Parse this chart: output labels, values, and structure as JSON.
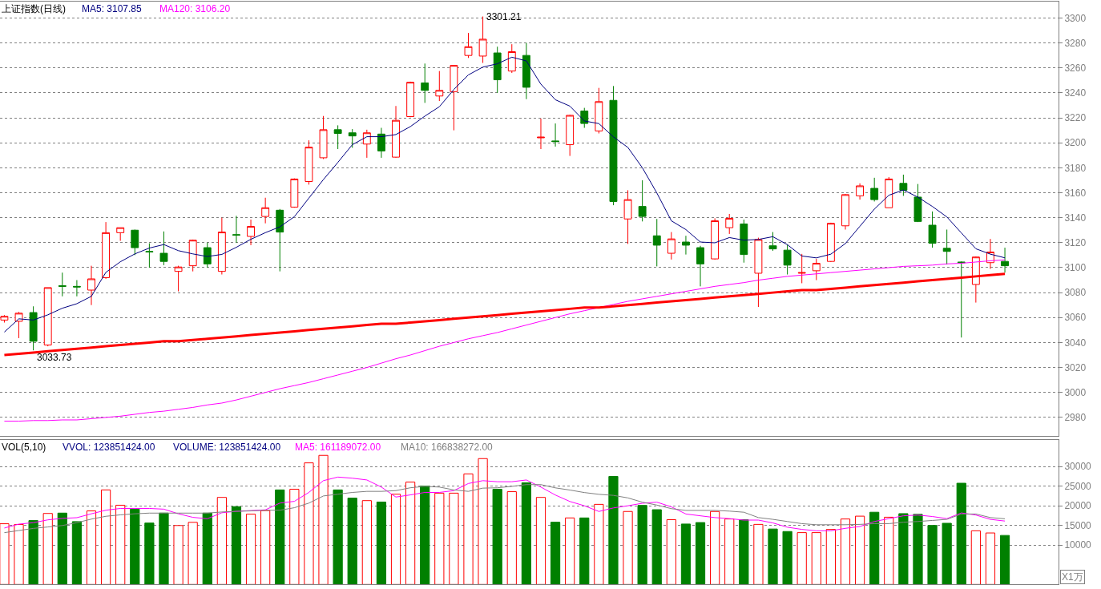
{
  "chart_data": [
    {
      "type": "candlestick",
      "title": "上证指数(日线)",
      "tick_labels": "y",
      "grid": "y",
      "categories": [
        null,
        null,
        null,
        null,
        null,
        null,
        null,
        null,
        null,
        null,
        null,
        null,
        null,
        null,
        null,
        null,
        null,
        null,
        null,
        null,
        null,
        null,
        null,
        null,
        null,
        null,
        null,
        null,
        null,
        null,
        null,
        null,
        null,
        null,
        null,
        null,
        null,
        null,
        null,
        null,
        null,
        null,
        null,
        null,
        null,
        null,
        null,
        null,
        null,
        null,
        null,
        null,
        null,
        null,
        null,
        null,
        null,
        null,
        null,
        null,
        null,
        null,
        null,
        null,
        null,
        null,
        null,
        null,
        null,
        null
      ],
      "ohlc": [
        [
          3058,
          3062,
          3056,
          3061
        ],
        [
          3057,
          3064.5,
          3043.5,
          3063.5
        ],
        [
          3064,
          3069,
          3033.73,
          3041
        ],
        [
          3038,
          3084,
          3037,
          3084
        ],
        [
          3085.5,
          3096,
          3077,
          3085
        ],
        [
          3085,
          3090,
          3077,
          3084.5
        ],
        [
          3082,
          3101.5,
          3070,
          3091
        ],
        [
          3092,
          3136.5,
          3091,
          3128
        ],
        [
          3128,
          3132,
          3121.5,
          3132
        ],
        [
          3130,
          3130.5,
          3110,
          3116
        ],
        [
          3113,
          3119.5,
          3100,
          3112.5
        ],
        [
          3111.5,
          3129,
          3102,
          3105
        ],
        [
          3097,
          3101.5,
          3081,
          3100.5
        ],
        [
          3101.5,
          3122.5,
          3097,
          3122
        ],
        [
          3116,
          3120,
          3100,
          3103
        ],
        [
          3097,
          3140,
          3094.5,
          3128.5
        ],
        [
          3126.5,
          3141.5,
          3120,
          3126
        ],
        [
          3125,
          3138.5,
          3118,
          3133
        ],
        [
          3141,
          3156,
          3135.5,
          3148
        ],
        [
          3146,
          3147,
          3097,
          3128.5
        ],
        [
          3148.5,
          3171.5,
          3148,
          3171
        ],
        [
          3169,
          3202,
          3166.5,
          3196.5
        ],
        [
          3188,
          3221.5,
          3187,
          3210.5
        ],
        [
          3210.5,
          3214,
          3195,
          3207.5
        ],
        [
          3208,
          3211,
          3196,
          3205.5
        ],
        [
          3199,
          3210.5,
          3188,
          3208
        ],
        [
          3207,
          3212,
          3188,
          3193.5
        ],
        [
          3188.5,
          3229.5,
          3188,
          3218
        ],
        [
          3221,
          3249,
          3220.5,
          3248.5
        ],
        [
          3248,
          3263.5,
          3232,
          3242
        ],
        [
          3237.5,
          3257.5,
          3233.5,
          3242
        ],
        [
          3241,
          3262,
          3210,
          3262
        ],
        [
          3270,
          3288,
          3268,
          3277
        ],
        [
          3269.5,
          3301.21,
          3264,
          3283
        ],
        [
          3272,
          3277,
          3240,
          3250.5
        ],
        [
          3257.5,
          3279,
          3256,
          3273
        ],
        [
          3270,
          3280,
          3235,
          3244.5
        ],
        [
          3204,
          3219.5,
          3195,
          3204.5
        ],
        [
          3201.5,
          3215.5,
          3197,
          3201
        ],
        [
          3198.5,
          3222.5,
          3189.5,
          3222
        ],
        [
          3225.5,
          3228,
          3212,
          3215.5
        ],
        [
          3209.5,
          3244,
          3207.5,
          3233
        ],
        [
          3234,
          3245.5,
          3150,
          3153
        ],
        [
          3139,
          3162,
          3119,
          3154.5
        ],
        [
          3149,
          3170,
          3137,
          3141
        ],
        [
          3125.5,
          3139,
          3101,
          3118
        ],
        [
          3111.5,
          3128.5,
          3106.5,
          3123
        ],
        [
          3120.5,
          3125.5,
          3110.5,
          3118
        ],
        [
          3116,
          3117.5,
          3085,
          3103
        ],
        [
          3107,
          3139.5,
          3106.5,
          3137.5
        ],
        [
          3132,
          3143,
          3127,
          3139.5
        ],
        [
          3135,
          3138.5,
          3104,
          3110.5
        ],
        [
          3095.5,
          3124,
          3068.5,
          3122.5
        ],
        [
          3117.5,
          3128.5,
          3113.5,
          3115
        ],
        [
          3114,
          3118.5,
          3094.5,
          3102
        ],
        [
          3095.5,
          3111,
          3087.5,
          3096
        ],
        [
          3097.5,
          3107,
          3090,
          3103.5
        ],
        [
          3105,
          3136,
          3104.5,
          3135.5
        ],
        [
          3133.5,
          3159,
          3130.5,
          3158.5
        ],
        [
          3157.5,
          3167.5,
          3154.5,
          3165.5
        ],
        [
          3163.5,
          3172,
          3153,
          3154.5
        ],
        [
          3148,
          3172.5,
          3148,
          3171
        ],
        [
          3167.5,
          3174.5,
          3157.5,
          3162
        ],
        [
          3156.5,
          3167,
          3136.5,
          3137
        ],
        [
          3134,
          3145,
          3116,
          3119.5
        ],
        [
          3115.5,
          3130.5,
          3102.5,
          3113
        ],
        [
          3104.5,
          3105,
          3044,
          3104
        ],
        [
          3086.5,
          3109,
          3072,
          3108.5
        ],
        [
          3104,
          3123,
          3099,
          3112.5
        ],
        [
          3105,
          3116,
          3096,
          3101.5
        ]
      ],
      "colors": [
        "#ff0000",
        "#ff0000",
        "#008000",
        "#ff0000",
        "#008000",
        "#008000",
        "#ff0000",
        "#ff0000",
        "#ff0000",
        "#008000",
        "#008000",
        "#008000",
        "#ff0000",
        "#ff0000",
        "#008000",
        "#ff0000",
        "#008000",
        "#ff0000",
        "#ff0000",
        "#008000",
        "#ff0000",
        "#ff0000",
        "#ff0000",
        "#008000",
        "#008000",
        "#ff0000",
        "#008000",
        "#ff0000",
        "#ff0000",
        "#008000",
        "#ff0000",
        "#ff0000",
        "#ff0000",
        "#ff0000",
        "#008000",
        "#ff0000",
        "#008000",
        "#ff0000",
        "#008000",
        "#ff0000",
        "#008000",
        "#ff0000",
        "#008000",
        "#ff0000",
        "#008000",
        "#008000",
        "#ff0000",
        "#008000",
        "#008000",
        "#ff0000",
        "#ff0000",
        "#008000",
        "#ff0000",
        "#008000",
        "#008000",
        "#ff0000",
        "#ff0000",
        "#ff0000",
        "#ff0000",
        "#ff0000",
        "#008000",
        "#ff0000",
        "#008000",
        "#008000",
        "#008000",
        "#008000",
        "#008000",
        "#ff0000",
        "#ff0000",
        "#008000"
      ],
      "series": [
        {
          "name": "MA5: 3107.85",
          "type": "line",
          "color": "#000080",
          "values": [
            3048.4,
            3059,
            3058,
            3062.2,
            3067.5,
            3071.1,
            3077,
            3096.2,
            3104.7,
            3111,
            3115.7,
            3118.5,
            3113.6,
            3111,
            3108.9,
            3110.6,
            3116.3,
            3122.7,
            3128,
            3132.7,
            3140.8,
            3155.7,
            3170.5,
            3184.3,
            3198.5,
            3204.9,
            3204.9,
            3206.6,
            3213,
            3221.4,
            3228.9,
            3242.7,
            3254.4,
            3260.7,
            3263.3,
            3268.6,
            3265.6,
            3247,
            3234.5,
            3229.4,
            3217.5,
            3215.4,
            3204.8,
            3196.3,
            3180,
            3159.8,
            3137.5,
            3130.5,
            3120.5,
            3119.9,
            3124.1,
            3122,
            3122.6,
            3124.8,
            3118.4,
            3109.3,
            3107.8,
            3110.8,
            3119.3,
            3133.1,
            3146.9,
            3158,
            3162.2,
            3156.5,
            3149,
            3140.6,
            3127.8,
            3115.1,
            3110.8,
            3107.85
          ]
        },
        {
          "name": "MA120: 3106.20",
          "type": "line",
          "color": "#ff00ff",
          "values": [
            2977,
            2977,
            2977.5,
            2977.5,
            2978,
            2978,
            2979,
            2980,
            2981,
            2982.5,
            2984,
            2985,
            2986.5,
            2988,
            2990,
            2991.5,
            2994,
            2997,
            3000,
            3003,
            3005.5,
            3008,
            3011,
            3014,
            3017,
            3020,
            3023.5,
            3027,
            3030,
            3033.5,
            3037,
            3040,
            3043,
            3045.5,
            3048,
            3051,
            3054,
            3057,
            3060,
            3063,
            3065.5,
            3068,
            3070.5,
            3073,
            3075,
            3077,
            3079,
            3081,
            3083,
            3085,
            3086.5,
            3088,
            3090,
            3091.5,
            3093,
            3094,
            3095,
            3096,
            3097,
            3098,
            3099,
            3100,
            3101,
            3101.5,
            3102,
            3103,
            3103.5,
            3104.5,
            3105.5,
            3106.2
          ]
        },
        {
          "type": "line",
          "color": "#ff0000",
          "values": [
            3030,
            3031,
            3032,
            3033,
            3034,
            3035,
            3036,
            3037,
            3038,
            3039,
            3040,
            3041,
            3041,
            3042,
            3043,
            3044,
            3045,
            3046,
            3047,
            3048,
            3049,
            3050,
            3051,
            3052,
            3053,
            3054,
            3055,
            3055,
            3056,
            3057,
            3058,
            3059,
            3060,
            3061,
            3062,
            3063,
            3064,
            3065,
            3066,
            3067,
            3068,
            3068,
            3069,
            3070,
            3071,
            3072,
            3073,
            3074,
            3075,
            3076,
            3077,
            3078,
            3079,
            3080,
            3081,
            3082,
            3082,
            3083,
            3084,
            3085,
            3086,
            3087,
            3088,
            3089,
            3090,
            3091,
            3092,
            3093,
            3094,
            3095
          ]
        }
      ],
      "ylim": [
        2965,
        3313
      ],
      "yticks": [
        2980,
        3000,
        3020,
        3040,
        3060,
        3080,
        3100,
        3120,
        3140,
        3160,
        3180,
        3200,
        3220,
        3240,
        3260,
        3280,
        3300
      ],
      "annotations": [
        "3301.21",
        "3033.73"
      ]
    },
    {
      "type": "bar",
      "title": "VOL(5,10)",
      "tick_labels": "y",
      "grid": "y",
      "ylabel": "X1万",
      "categories": [
        null,
        null,
        null,
        null,
        null,
        null,
        null,
        null,
        null,
        null,
        null,
        null,
        null,
        null,
        null,
        null,
        null,
        null,
        null,
        null,
        null,
        null,
        null,
        null,
        null,
        null,
        null,
        null,
        null,
        null,
        null,
        null,
        null,
        null,
        null,
        null,
        null,
        null,
        null,
        null,
        null,
        null,
        null,
        null,
        null,
        null,
        null,
        null,
        null,
        null,
        null,
        null,
        null,
        null,
        null,
        null,
        null,
        null,
        null,
        null,
        null,
        null,
        null,
        null,
        null,
        null,
        null,
        null,
        null,
        null
      ],
      "annotations": [
        "VVOL: 123851424.00",
        "VOLUME: 123851424.00"
      ],
      "series": [
        {
          "type": "bar",
          "values": [
            15430,
            15250,
            16240,
            18050,
            18140,
            15970,
            18690,
            24030,
            20140,
            19140,
            15610,
            18140,
            14980,
            15790,
            18140,
            22130,
            19780,
            17870,
            18780,
            24030,
            24210,
            30900,
            32810,
            24030,
            21950,
            21310,
            20950,
            22940,
            26020,
            25020,
            23210,
            23210,
            28100,
            31990,
            24210,
            23580,
            25840,
            22130,
            15820,
            16910,
            16910,
            20360,
            27450,
            18550,
            20090,
            19000,
            16460,
            15360,
            15730,
            18550,
            16640,
            16460,
            15270,
            14090,
            13460,
            13180,
            13180,
            14000,
            16640,
            17360,
            18360,
            17090,
            18000,
            17820,
            15000,
            15550,
            25730,
            13640,
            13090,
            12460
          ],
          "colors": [
            "#ff0000",
            "#ff0000",
            "#008000",
            "#ff0000",
            "#008000",
            "#008000",
            "#ff0000",
            "#ff0000",
            "#ff0000",
            "#008000",
            "#008000",
            "#008000",
            "#ff0000",
            "#ff0000",
            "#008000",
            "#ff0000",
            "#008000",
            "#ff0000",
            "#ff0000",
            "#008000",
            "#ff0000",
            "#ff0000",
            "#ff0000",
            "#008000",
            "#008000",
            "#ff0000",
            "#008000",
            "#ff0000",
            "#ff0000",
            "#008000",
            "#ff0000",
            "#ff0000",
            "#ff0000",
            "#ff0000",
            "#008000",
            "#ff0000",
            "#008000",
            "#ff0000",
            "#008000",
            "#ff0000",
            "#008000",
            "#ff0000",
            "#008000",
            "#ff0000",
            "#008000",
            "#008000",
            "#ff0000",
            "#008000",
            "#008000",
            "#ff0000",
            "#ff0000",
            "#008000",
            "#ff0000",
            "#008000",
            "#008000",
            "#ff0000",
            "#ff0000",
            "#ff0000",
            "#ff0000",
            "#ff0000",
            "#008000",
            "#ff0000",
            "#008000",
            "#008000",
            "#008000",
            "#008000",
            "#008000",
            "#ff0000",
            "#ff0000",
            "#008000"
          ]
        },
        {
          "name": "MA5: 161189072.00",
          "type": "line",
          "color": "#ff00ff",
          "values": [
            14340,
            15340,
            15700,
            16420,
            16790,
            16970,
            17960,
            18870,
            19320,
            19320,
            19320,
            19140,
            17960,
            17060,
            16700,
            18230,
            18590,
            18780,
            18960,
            20680,
            21130,
            23390,
            26380,
            27290,
            27010,
            26560,
            24750,
            22220,
            22760,
            23390,
            23390,
            23850,
            25660,
            26380,
            26110,
            26110,
            26560,
            24750,
            22730,
            21090,
            20000,
            18550,
            19450,
            20000,
            20640,
            20910,
            19730,
            17910,
            17450,
            17000,
            16730,
            16360,
            16360,
            15640,
            14550,
            14000,
            13640,
            13640,
            14270,
            14730,
            16000,
            16730,
            17450,
            17640,
            17270,
            16730,
            18180,
            17640,
            16550,
            16119
          ]
        },
        {
          "name": "MA10: 166838272.00",
          "type": "line",
          "color": "#808080",
          "values": [
            13170,
            13710,
            14250,
            14610,
            14980,
            15700,
            16610,
            17330,
            17690,
            17960,
            18140,
            18140,
            18140,
            18140,
            18140,
            18420,
            18590,
            18690,
            18870,
            18870,
            19500,
            20680,
            22490,
            22940,
            23390,
            23660,
            23660,
            23850,
            24570,
            24930,
            24750,
            24030,
            23660,
            24480,
            24570,
            24930,
            25380,
            25380,
            24550,
            24000,
            23360,
            22910,
            22640,
            22000,
            20910,
            20180,
            19270,
            18820,
            18820,
            18820,
            18640,
            18360,
            17000,
            16550,
            16000,
            15460,
            15180,
            15180,
            15180,
            15270,
            15460,
            15460,
            15820,
            16000,
            16270,
            16550,
            17910,
            17910,
            17000,
            16684
          ]
        }
      ],
      "ylim": [
        0,
        36800
      ],
      "yticks": [
        10000,
        15000,
        20000,
        25000,
        30000
      ]
    }
  ]
}
